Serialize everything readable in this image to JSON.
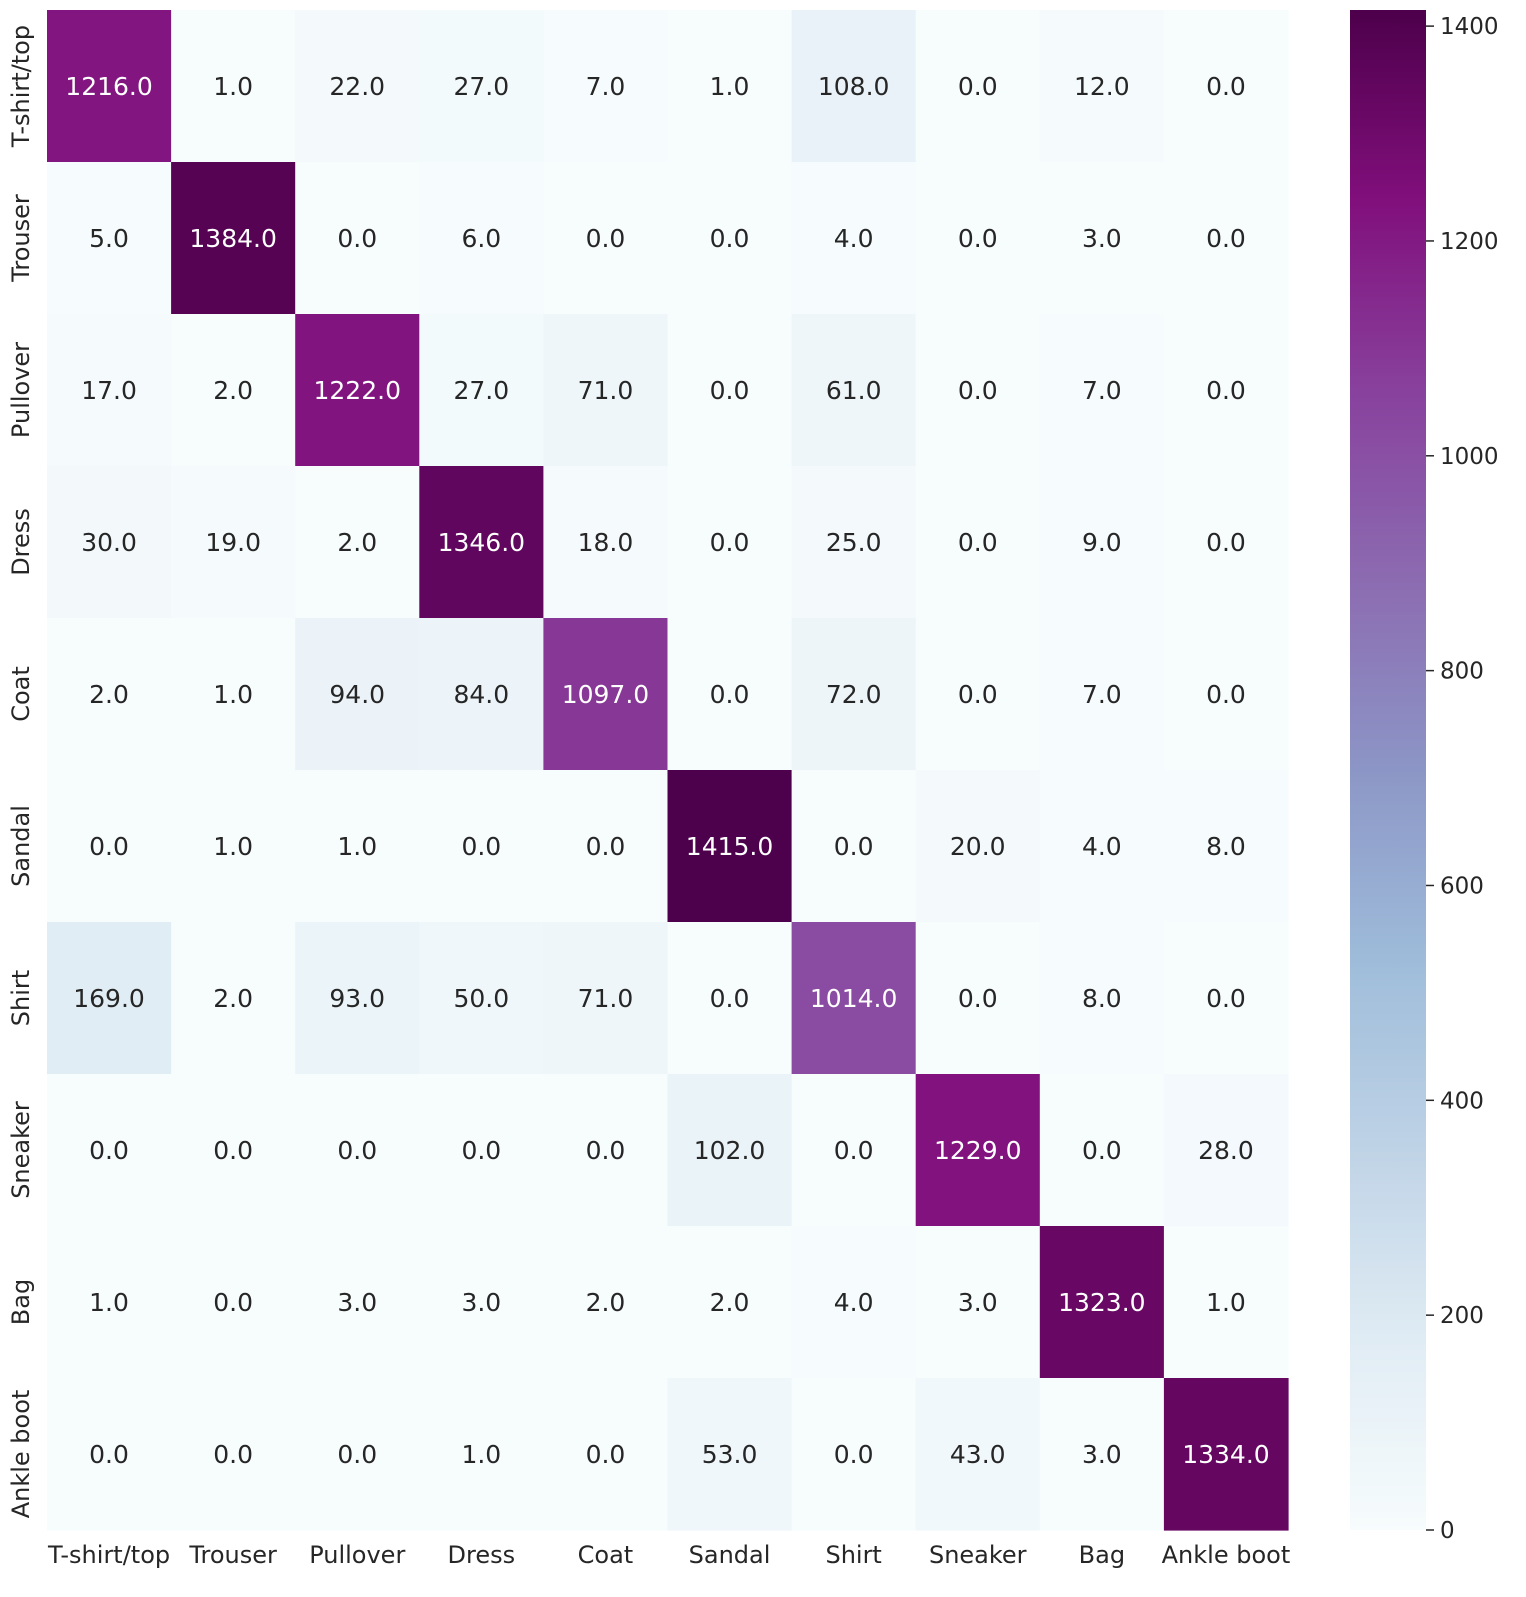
{
  "chart_data": {
    "type": "heatmap",
    "title": "",
    "xlabel": "",
    "ylabel": "",
    "x_categories": [
      "T-shirt/top",
      "Trouser",
      "Pullover",
      "Dress",
      "Coat",
      "Sandal",
      "Shirt",
      "Sneaker",
      "Bag",
      "Ankle boot"
    ],
    "y_categories": [
      "T-shirt/top",
      "Trouser",
      "Pullover",
      "Dress",
      "Coat",
      "Sandal",
      "Shirt",
      "Sneaker",
      "Bag",
      "Ankle boot"
    ],
    "values": [
      [
        1216.0,
        1.0,
        22.0,
        27.0,
        7.0,
        1.0,
        108.0,
        0.0,
        12.0,
        0.0
      ],
      [
        5.0,
        1384.0,
        0.0,
        6.0,
        0.0,
        0.0,
        4.0,
        0.0,
        3.0,
        0.0
      ],
      [
        17.0,
        2.0,
        1222.0,
        27.0,
        71.0,
        0.0,
        61.0,
        0.0,
        7.0,
        0.0
      ],
      [
        30.0,
        19.0,
        2.0,
        1346.0,
        18.0,
        0.0,
        25.0,
        0.0,
        9.0,
        0.0
      ],
      [
        2.0,
        1.0,
        94.0,
        84.0,
        1097.0,
        0.0,
        72.0,
        0.0,
        7.0,
        0.0
      ],
      [
        0.0,
        1.0,
        1.0,
        0.0,
        0.0,
        1415.0,
        0.0,
        20.0,
        4.0,
        8.0
      ],
      [
        169.0,
        2.0,
        93.0,
        50.0,
        71.0,
        0.0,
        1014.0,
        0.0,
        8.0,
        0.0
      ],
      [
        0.0,
        0.0,
        0.0,
        0.0,
        0.0,
        102.0,
        0.0,
        1229.0,
        0.0,
        28.0
      ],
      [
        1.0,
        0.0,
        3.0,
        3.0,
        2.0,
        2.0,
        4.0,
        3.0,
        1323.0,
        1.0
      ],
      [
        0.0,
        0.0,
        0.0,
        1.0,
        0.0,
        53.0,
        0.0,
        43.0,
        3.0,
        1334.0
      ]
    ],
    "value_format": "0.0",
    "colormap": "BuPu",
    "color_range": [
      0,
      1415
    ],
    "colorbar": {
      "ticks": [
        0,
        200,
        400,
        600,
        800,
        1000,
        1200,
        1400
      ],
      "placement": "right"
    },
    "grid": false,
    "legend": "none"
  }
}
